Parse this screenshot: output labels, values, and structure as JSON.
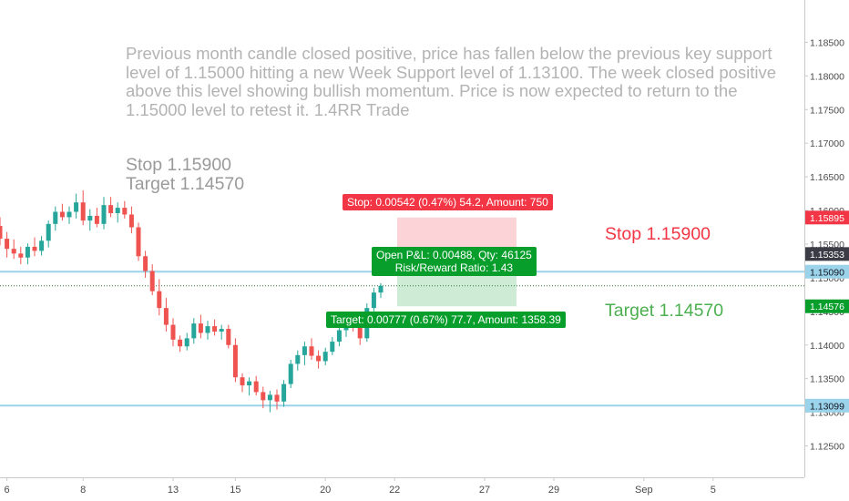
{
  "annotation": {
    "text": "Previous month candle closed positive, price has fallen below the previous key support level of 1.15000 hitting a new Week Support level of 1.13100. The week closed positive above this level showing bullish momentum. Price is now expected to return to the 1.15000 level to retest it. 1.4RR Trade"
  },
  "notes": {
    "stop": "Stop 1.15900",
    "target": "Target 1.14570",
    "big_stop": "Stop 1.15900",
    "big_target": "Target 1.14570"
  },
  "position_tool": {
    "stop_label": "Stop: 0.00542 (0.47%) 54.2, Amount: 750",
    "pnl_line1": "Open P&L: 0.00488, Qty: 46125",
    "pnl_line2": "Risk/Reward Ratio: 1.43",
    "target_label": "Target: 0.00777 (0.67%) 77.7, Amount: 1358.39",
    "entry": 1.15353,
    "stop": 1.15895,
    "target": 1.14576
  },
  "price_tags": [
    {
      "label": "1.15895",
      "value": 1.15895,
      "bg": "#f23645",
      "fg": "#ffffff"
    },
    {
      "label": "1.15353",
      "value": 1.15353,
      "bg": "#3c3c46",
      "fg": "#ffffff"
    },
    {
      "label": "1.15090",
      "value": 1.1509,
      "bg": "#9ad3ea",
      "fg": "#131722"
    },
    {
      "label": "1.14576",
      "value": 1.14576,
      "bg": "#089e2c",
      "fg": "#ffffff"
    },
    {
      "label": "1.13099",
      "value": 1.13099,
      "bg": "#9ad3ea",
      "fg": "#131722"
    }
  ],
  "horizontal_lines": [
    1.1509,
    1.13099
  ],
  "current_price_line": 1.1488,
  "colors": {
    "up": "#26a69a",
    "down": "#ef5350",
    "hline": "#9ad3ea",
    "current_line": "#2e7d32",
    "stop_zone": "rgba(242,54,69,0.22)",
    "target_zone": "rgba(8,158,44,0.2)",
    "axis_text": "#4a4a4a"
  },
  "chart_data": {
    "type": "candlestick",
    "y_axis": {
      "range": [
        1.1225,
        1.19
      ],
      "ticks": [
        "1.18500",
        "1.18000",
        "1.17500",
        "1.17000",
        "1.16500",
        "1.16000",
        "1.15500",
        "1.15000",
        "1.14500",
        "1.14000",
        "1.13500",
        "1.13000",
        "1.12500"
      ]
    },
    "x_axis": {
      "ticks": [
        {
          "label": "6",
          "bar": 1
        },
        {
          "label": "8",
          "bar": 12
        },
        {
          "label": "13",
          "bar": 25
        },
        {
          "label": "15",
          "bar": 34
        },
        {
          "label": "20",
          "bar": 47
        },
        {
          "label": "22",
          "bar": 57
        },
        {
          "label": "27",
          "bar": 70
        },
        {
          "label": "29",
          "bar": 80
        },
        {
          "label": "Sep",
          "bar": 93
        },
        {
          "label": "5",
          "bar": 103
        }
      ]
    },
    "candles": [
      {
        "o": 1.1577,
        "h": 1.159,
        "l": 1.1548,
        "c": 1.1558
      },
      {
        "o": 1.1558,
        "h": 1.1568,
        "l": 1.153,
        "c": 1.1543
      },
      {
        "o": 1.1543,
        "h": 1.1557,
        "l": 1.1528,
        "c": 1.1536
      },
      {
        "o": 1.1536,
        "h": 1.1546,
        "l": 1.152,
        "c": 1.153
      },
      {
        "o": 1.153,
        "h": 1.1551,
        "l": 1.152,
        "c": 1.1546
      },
      {
        "o": 1.1546,
        "h": 1.156,
        "l": 1.1532,
        "c": 1.154
      },
      {
        "o": 1.154,
        "h": 1.1562,
        "l": 1.1533,
        "c": 1.1555
      },
      {
        "o": 1.1555,
        "h": 1.1585,
        "l": 1.1545,
        "c": 1.158
      },
      {
        "o": 1.158,
        "h": 1.1606,
        "l": 1.157,
        "c": 1.1598
      },
      {
        "o": 1.1598,
        "h": 1.161,
        "l": 1.1585,
        "c": 1.159
      },
      {
        "o": 1.159,
        "h": 1.1606,
        "l": 1.158,
        "c": 1.1598
      },
      {
        "o": 1.1598,
        "h": 1.1625,
        "l": 1.1588,
        "c": 1.1612
      },
      {
        "o": 1.1612,
        "h": 1.163,
        "l": 1.1578,
        "c": 1.1585
      },
      {
        "o": 1.1585,
        "h": 1.1602,
        "l": 1.157,
        "c": 1.1592
      },
      {
        "o": 1.1592,
        "h": 1.1604,
        "l": 1.1575,
        "c": 1.158
      },
      {
        "o": 1.158,
        "h": 1.162,
        "l": 1.1572,
        "c": 1.1608
      },
      {
        "o": 1.1608,
        "h": 1.162,
        "l": 1.159,
        "c": 1.1596
      },
      {
        "o": 1.1596,
        "h": 1.1612,
        "l": 1.1582,
        "c": 1.1604
      },
      {
        "o": 1.1604,
        "h": 1.1614,
        "l": 1.1588,
        "c": 1.1594
      },
      {
        "o": 1.1594,
        "h": 1.1606,
        "l": 1.1566,
        "c": 1.1575
      },
      {
        "o": 1.1575,
        "h": 1.1582,
        "l": 1.1525,
        "c": 1.1532
      },
      {
        "o": 1.1532,
        "h": 1.154,
        "l": 1.15,
        "c": 1.151
      },
      {
        "o": 1.151,
        "h": 1.152,
        "l": 1.1474,
        "c": 1.148
      },
      {
        "o": 1.148,
        "h": 1.1498,
        "l": 1.1444,
        "c": 1.1455
      },
      {
        "o": 1.1455,
        "h": 1.147,
        "l": 1.142,
        "c": 1.143
      },
      {
        "o": 1.143,
        "h": 1.144,
        "l": 1.1398,
        "c": 1.1408
      },
      {
        "o": 1.1408,
        "h": 1.1414,
        "l": 1.139,
        "c": 1.1398
      },
      {
        "o": 1.1398,
        "h": 1.1418,
        "l": 1.1392,
        "c": 1.141
      },
      {
        "o": 1.141,
        "h": 1.144,
        "l": 1.1402,
        "c": 1.1432
      },
      {
        "o": 1.1432,
        "h": 1.1445,
        "l": 1.141,
        "c": 1.1418
      },
      {
        "o": 1.1418,
        "h": 1.1436,
        "l": 1.1408,
        "c": 1.1428
      },
      {
        "o": 1.1428,
        "h": 1.1438,
        "l": 1.1414,
        "c": 1.142
      },
      {
        "o": 1.142,
        "h": 1.143,
        "l": 1.1408,
        "c": 1.1424
      },
      {
        "o": 1.1424,
        "h": 1.143,
        "l": 1.1395,
        "c": 1.14
      },
      {
        "o": 1.14,
        "h": 1.141,
        "l": 1.1345,
        "c": 1.1352
      },
      {
        "o": 1.1352,
        "h": 1.1358,
        "l": 1.133,
        "c": 1.134
      },
      {
        "o": 1.134,
        "h": 1.1352,
        "l": 1.1325,
        "c": 1.1346
      },
      {
        "o": 1.1346,
        "h": 1.1354,
        "l": 1.1325,
        "c": 1.133
      },
      {
        "o": 1.133,
        "h": 1.1338,
        "l": 1.1306,
        "c": 1.1318
      },
      {
        "o": 1.1318,
        "h": 1.1332,
        "l": 1.13,
        "c": 1.1326
      },
      {
        "o": 1.1326,
        "h": 1.1334,
        "l": 1.1304,
        "c": 1.1316
      },
      {
        "o": 1.1316,
        "h": 1.1348,
        "l": 1.1308,
        "c": 1.1342
      },
      {
        "o": 1.1342,
        "h": 1.1378,
        "l": 1.1336,
        "c": 1.1372
      },
      {
        "o": 1.1372,
        "h": 1.1392,
        "l": 1.1362,
        "c": 1.1385
      },
      {
        "o": 1.1385,
        "h": 1.1405,
        "l": 1.137,
        "c": 1.1398
      },
      {
        "o": 1.1398,
        "h": 1.141,
        "l": 1.1378,
        "c": 1.1384
      },
      {
        "o": 1.1384,
        "h": 1.1392,
        "l": 1.1365,
        "c": 1.1376
      },
      {
        "o": 1.1376,
        "h": 1.1396,
        "l": 1.137,
        "c": 1.139
      },
      {
        "o": 1.139,
        "h": 1.1412,
        "l": 1.1385,
        "c": 1.1405
      },
      {
        "o": 1.1405,
        "h": 1.143,
        "l": 1.1398,
        "c": 1.1422
      },
      {
        "o": 1.1422,
        "h": 1.144,
        "l": 1.1412,
        "c": 1.1434
      },
      {
        "o": 1.1434,
        "h": 1.1446,
        "l": 1.142,
        "c": 1.1428
      },
      {
        "o": 1.1428,
        "h": 1.1436,
        "l": 1.14,
        "c": 1.141
      },
      {
        "o": 1.141,
        "h": 1.1462,
        "l": 1.1405,
        "c": 1.1455
      },
      {
        "o": 1.1455,
        "h": 1.1485,
        "l": 1.145,
        "c": 1.1478
      },
      {
        "o": 1.1478,
        "h": 1.1492,
        "l": 1.147,
        "c": 1.1488
      }
    ]
  }
}
